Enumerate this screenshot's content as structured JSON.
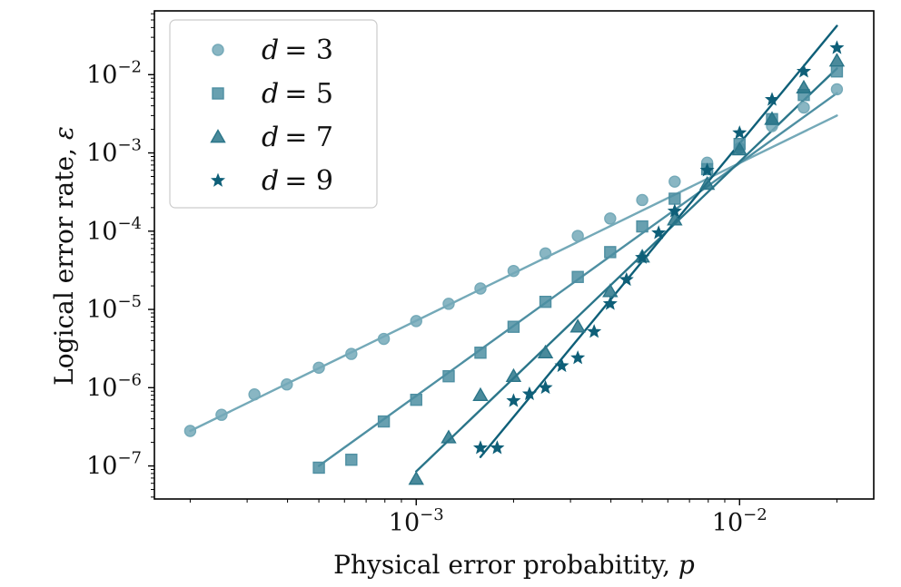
{
  "chart_data": {
    "type": "scatter",
    "x_scale": "log",
    "y_scale": "log",
    "xlabel_text": "Physical error probabitity, ",
    "xlabel_var": "p",
    "ylabel_text": "Logical error rate, ",
    "ylabel_var": "ε",
    "xlim": [
      0.000155,
      0.026
    ],
    "ylim": [
      3.78e-08,
      0.0653
    ],
    "x_major_ticks": [
      {
        "value": 0.001,
        "base": "10",
        "exp": "−3"
      },
      {
        "value": 0.01,
        "base": "10",
        "exp": "−2"
      }
    ],
    "y_major_ticks": [
      {
        "value": 1e-07,
        "base": "10",
        "exp": "−7"
      },
      {
        "value": 1e-06,
        "base": "10",
        "exp": "−6"
      },
      {
        "value": 1e-05,
        "base": "10",
        "exp": "−5"
      },
      {
        "value": 0.0001,
        "base": "10",
        "exp": "−4"
      },
      {
        "value": 0.001,
        "base": "10",
        "exp": "−3"
      },
      {
        "value": 0.01,
        "base": "10",
        "exp": "−2"
      }
    ],
    "legend": {
      "location": "upper-left"
    },
    "series": [
      {
        "name": "d = 3",
        "var": "d",
        "value_label": "= 3",
        "marker": "circle",
        "color": "#74a9b8",
        "points": [
          [
            0.0002,
            2.8e-07
          ],
          [
            0.00025,
            4.5e-07
          ],
          [
            0.000316,
            8.2e-07
          ],
          [
            0.000398,
            1.1e-06
          ],
          [
            0.0005,
            1.8e-06
          ],
          [
            0.00063,
            2.7e-06
          ],
          [
            0.000794,
            4.2e-06
          ],
          [
            0.001,
            7.1e-06
          ],
          [
            0.00126,
            1.18e-05
          ],
          [
            0.00158,
            1.85e-05
          ],
          [
            0.002,
            3.1e-05
          ],
          [
            0.00251,
            5.2e-05
          ],
          [
            0.00316,
            8.7e-05
          ],
          [
            0.00398,
            0.000145
          ],
          [
            0.005,
            0.00025
          ],
          [
            0.0063,
            0.00043
          ],
          [
            0.00794,
            0.00075
          ],
          [
            0.01,
            0.00115
          ],
          [
            0.0126,
            0.0022
          ],
          [
            0.0158,
            0.0038
          ],
          [
            0.02,
            0.0065
          ]
        ],
        "fit": [
          [
            0.0002,
            2.8e-07
          ],
          [
            0.02,
            0.003
          ]
        ]
      },
      {
        "name": "d = 5",
        "var": "d",
        "value_label": "= 5",
        "marker": "square",
        "color": "#4e8fa2",
        "points": [
          [
            0.0005,
            9.5e-08
          ],
          [
            0.00063,
            1.2e-07
          ],
          [
            0.000794,
            3.7e-07
          ],
          [
            0.001,
            7e-07
          ],
          [
            0.00126,
            1.4e-06
          ],
          [
            0.00158,
            2.8e-06
          ],
          [
            0.002,
            6e-06
          ],
          [
            0.00251,
            1.25e-05
          ],
          [
            0.00316,
            2.6e-05
          ],
          [
            0.00398,
            5.4e-05
          ],
          [
            0.005,
            0.000115
          ],
          [
            0.0063,
            0.00026
          ],
          [
            0.00794,
            0.00062
          ],
          [
            0.01,
            0.0013
          ],
          [
            0.0126,
            0.0027
          ],
          [
            0.0158,
            0.0055
          ],
          [
            0.02,
            0.011
          ]
        ],
        "fit": [
          [
            0.0005,
            1e-07
          ],
          [
            0.02,
            0.0058
          ]
        ]
      },
      {
        "name": "d = 7",
        "var": "d",
        "value_label": "= 7",
        "marker": "triangle",
        "color": "#2a7589",
        "points": [
          [
            0.001,
            6.8e-08
          ],
          [
            0.00126,
            2.3e-07
          ],
          [
            0.00158,
            8e-07
          ],
          [
            0.002,
            1.4e-06
          ],
          [
            0.00251,
            2.8e-06
          ],
          [
            0.00316,
            6e-06
          ],
          [
            0.00398,
            1.7e-05
          ],
          [
            0.005,
            4.7e-05
          ],
          [
            0.0063,
            0.00014
          ],
          [
            0.00794,
            0.0004
          ],
          [
            0.01,
            0.0011
          ],
          [
            0.0126,
            0.0027
          ],
          [
            0.0158,
            0.0068
          ],
          [
            0.02,
            0.015
          ]
        ],
        "fit": [
          [
            0.001,
            8.5e-08
          ],
          [
            0.02,
            0.012
          ]
        ]
      },
      {
        "name": "d = 9",
        "var": "d",
        "value_label": "= 9",
        "marker": "star",
        "color": "#0e5f78",
        "points": [
          [
            0.00158,
            1.7e-07
          ],
          [
            0.00178,
            1.7e-07
          ],
          [
            0.002,
            6.8e-07
          ],
          [
            0.00224,
            8.3e-07
          ],
          [
            0.00251,
            1e-06
          ],
          [
            0.00282,
            1.9e-06
          ],
          [
            0.00316,
            2.4e-06
          ],
          [
            0.00355,
            5.2e-06
          ],
          [
            0.00398,
            1.18e-05
          ],
          [
            0.00447,
            2.4e-05
          ],
          [
            0.005,
            4.6e-05
          ],
          [
            0.00562,
            9.5e-05
          ],
          [
            0.0063,
            0.00018
          ],
          [
            0.00794,
            0.0006
          ],
          [
            0.01,
            0.0018
          ],
          [
            0.0126,
            0.0048
          ],
          [
            0.0158,
            0.011
          ],
          [
            0.02,
            0.022
          ]
        ],
        "fit": [
          [
            0.00158,
            1.3e-07
          ],
          [
            0.02,
            0.042
          ]
        ]
      }
    ]
  }
}
